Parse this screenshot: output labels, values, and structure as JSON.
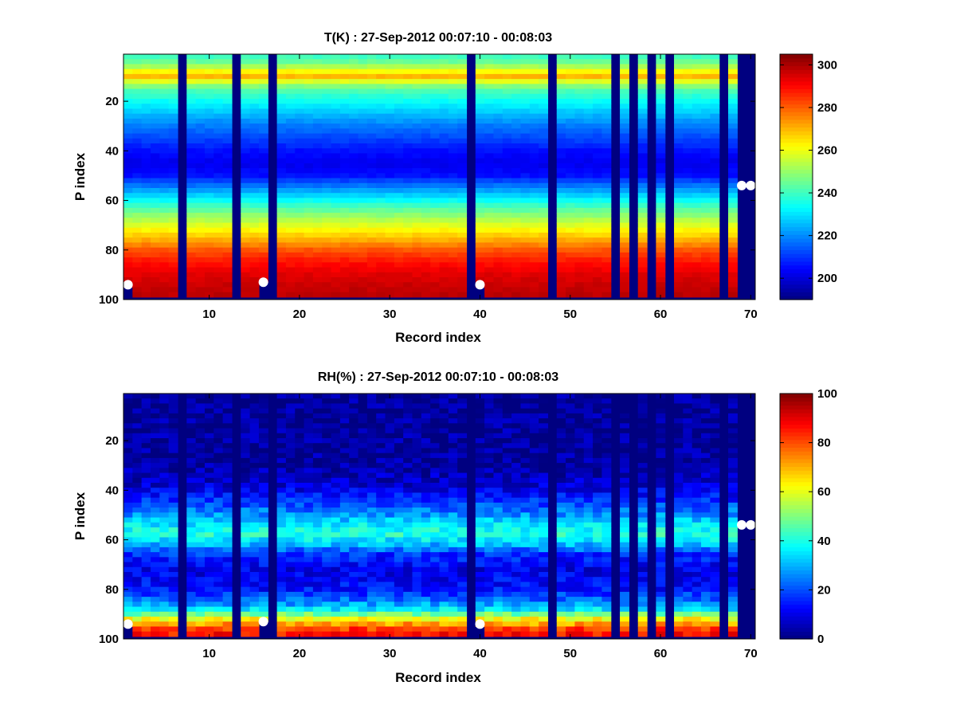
{
  "chart_data": [
    {
      "type": "heatmap",
      "title": "T(K) : 27-Sep-2012 00:07:10 - 00:08:03",
      "xlabel": "Record index",
      "ylabel": "P index",
      "xlim": [
        0.5,
        70.5
      ],
      "ylim": [
        1,
        100
      ],
      "y_reversed": true,
      "x_ticks": [
        10,
        20,
        30,
        40,
        50,
        60,
        70
      ],
      "y_ticks": [
        20,
        40,
        60,
        80,
        100
      ],
      "colormap": "jet",
      "colorbar": {
        "min": 190,
        "max": 305,
        "ticks": [
          200,
          220,
          240,
          260,
          280,
          300
        ]
      },
      "missing_records": [
        7,
        13,
        17,
        39,
        48,
        55,
        57,
        59,
        61,
        67,
        69,
        70
      ],
      "surface_markers": [
        {
          "record": 1,
          "p_index": 94
        },
        {
          "record": 16,
          "p_index": 93
        },
        {
          "record": 40,
          "p_index": 94
        },
        {
          "record": 69,
          "p_index": 54
        },
        {
          "record": 70,
          "p_index": 54
        }
      ],
      "profile": {
        "p_index": [
          1,
          5,
          8,
          10,
          12,
          15,
          20,
          30,
          40,
          45,
          50,
          55,
          60,
          65,
          70,
          75,
          80,
          85,
          90,
          95,
          98
        ],
        "value": [
          238,
          247,
          262,
          270,
          258,
          243,
          234,
          218,
          206,
          202,
          206,
          220,
          234,
          247,
          258,
          269,
          281,
          289,
          294,
          297,
          298
        ]
      }
    },
    {
      "type": "heatmap",
      "title": "RH(%) : 27-Sep-2012 00:07:10 - 00:08:03",
      "xlabel": "Record index",
      "ylabel": "P index",
      "xlim": [
        0.5,
        70.5
      ],
      "ylim": [
        1,
        100
      ],
      "y_reversed": true,
      "x_ticks": [
        10,
        20,
        30,
        40,
        50,
        60,
        70
      ],
      "y_ticks": [
        20,
        40,
        60,
        80,
        100
      ],
      "colormap": "jet",
      "colorbar": {
        "min": 0,
        "max": 100,
        "ticks": [
          0,
          20,
          40,
          60,
          80,
          100
        ]
      },
      "missing_records": [
        7,
        13,
        17,
        39,
        48,
        55,
        57,
        59,
        61,
        67,
        69,
        70
      ],
      "surface_markers": [
        {
          "record": 1,
          "p_index": 94
        },
        {
          "record": 16,
          "p_index": 93
        },
        {
          "record": 40,
          "p_index": 94
        },
        {
          "record": 69,
          "p_index": 54
        },
        {
          "record": 70,
          "p_index": 54
        }
      ],
      "profile": {
        "p_index": [
          1,
          30,
          38,
          45,
          50,
          55,
          58,
          62,
          66,
          72,
          80,
          85,
          88,
          92,
          96,
          98
        ],
        "value": [
          2,
          3,
          8,
          18,
          27,
          38,
          41,
          30,
          17,
          10,
          14,
          25,
          35,
          62,
          82,
          86
        ]
      }
    }
  ]
}
